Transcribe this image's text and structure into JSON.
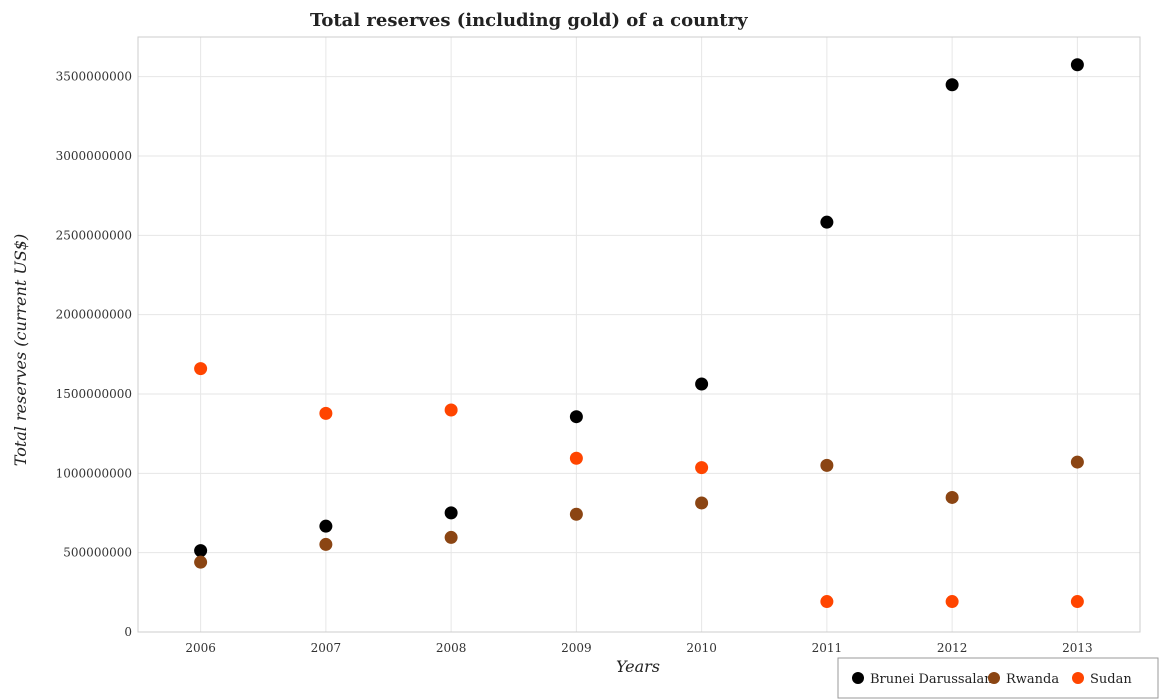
{
  "chart_data": {
    "type": "scatter",
    "title": "Total reserves (including gold) of a country",
    "xlabel": "Years",
    "ylabel": "Total reserves (current US$)",
    "x": [
      "2006",
      "2007",
      "2008",
      "2009",
      "2010",
      "2011",
      "2012",
      "2013"
    ],
    "ylim": [
      0,
      3750000000
    ],
    "yticks": [
      0,
      500000000,
      1000000000,
      1500000000,
      2000000000,
      2500000000,
      3000000000,
      3500000000
    ],
    "ytick_labels": [
      "0",
      "500000000",
      "1000000000",
      "1500000000",
      "2000000000",
      "2500000000",
      "3000000000",
      "3500000000"
    ],
    "grid": true,
    "legend_position": "bottom-right",
    "series": [
      {
        "name": "Brunei Darussalam",
        "color": "#000000",
        "values": [
          513000000,
          667000000,
          751000000,
          1357000000,
          1563000000,
          2583000000,
          3449000000,
          3575000000
        ]
      },
      {
        "name": "Rwanda",
        "color": "#8b4513",
        "values": [
          440000000,
          552000000,
          596000000,
          742000000,
          813000000,
          1050000000,
          848000000,
          1071000000
        ]
      },
      {
        "name": "Sudan",
        "color": "#ff4500",
        "values": [
          1660000000,
          1378000000,
          1399000000,
          1095000000,
          1036000000,
          192000000,
          192000000,
          192000000
        ]
      }
    ]
  }
}
